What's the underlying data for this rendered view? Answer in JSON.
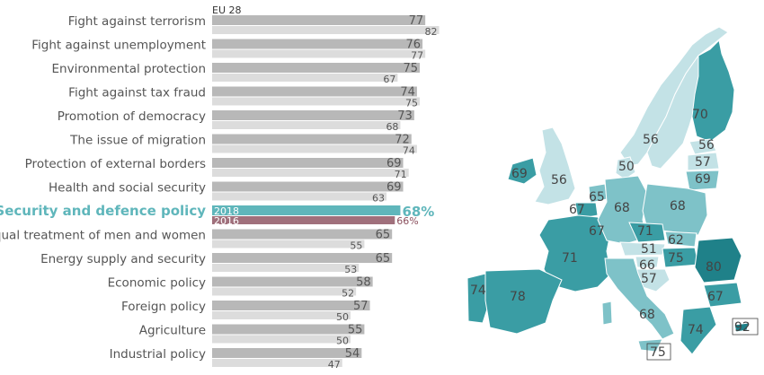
{
  "chart_data": {
    "type": "bar",
    "legend_label": "EU 28",
    "unit": "%",
    "series": [
      {
        "name": "2018"
      },
      {
        "name": "2016"
      }
    ],
    "colors": {
      "bar_2018": "#b8b8b8",
      "bar_2016": "#dcdcdc",
      "highlight_2018": "#5fb6bb",
      "highlight_2016": "#a0707c"
    },
    "rows": [
      {
        "label": "Fight against terrorism",
        "v2018": 77,
        "v2016": 82
      },
      {
        "label": "Fight against unemployment",
        "v2018": 76,
        "v2016": 77
      },
      {
        "label": "Environmental protection",
        "v2018": 75,
        "v2016": 67
      },
      {
        "label": "Fight against tax fraud",
        "v2018": 74,
        "v2016": 75
      },
      {
        "label": "Promotion of democracy",
        "v2018": 73,
        "v2016": 68
      },
      {
        "label": "The issue of migration",
        "v2018": 72,
        "v2016": 74
      },
      {
        "label": "Protection of external borders",
        "v2018": 69,
        "v2016": 71
      },
      {
        "label": "Health and social security",
        "v2018": 69,
        "v2016": 63
      },
      {
        "label": "Security and defence policy",
        "v2018": 68,
        "v2016": 66,
        "highlight": true,
        "v2018_text": "68%",
        "v2016_text": "66%",
        "year1": "2018",
        "year2": "2016"
      },
      {
        "label": "Equal treatment of men and women",
        "v2018": 65,
        "v2016": 55
      },
      {
        "label": "Energy supply and security",
        "v2018": 65,
        "v2016": 53
      },
      {
        "label": "Economic policy",
        "v2018": 58,
        "v2016": 52
      },
      {
        "label": "Foreign policy",
        "v2018": 57,
        "v2016": 50
      },
      {
        "label": "Agriculture",
        "v2018": 55,
        "v2016": 50
      },
      {
        "label": "Industrial policy",
        "v2018": 54,
        "v2016": 47
      }
    ]
  },
  "map": {
    "values": [
      {
        "country": "Finland",
        "value": "70"
      },
      {
        "country": "Sweden",
        "value": "56"
      },
      {
        "country": "Estonia",
        "value": "56"
      },
      {
        "country": "Latvia",
        "value": "57"
      },
      {
        "country": "Lithuania",
        "value": "69"
      },
      {
        "country": "Denmark",
        "value": "50"
      },
      {
        "country": "Ireland",
        "value": "69"
      },
      {
        "country": "United Kingdom",
        "value": "56"
      },
      {
        "country": "Netherlands",
        "value": "65"
      },
      {
        "country": "Belgium",
        "value": "67"
      },
      {
        "country": "Luxembourg",
        "value": "67"
      },
      {
        "country": "Germany",
        "value": "68"
      },
      {
        "country": "Poland",
        "value": "68"
      },
      {
        "country": "Czech Republic",
        "value": "71"
      },
      {
        "country": "Slovakia",
        "value": "62"
      },
      {
        "country": "Austria",
        "value": "51"
      },
      {
        "country": "Hungary",
        "value": "75"
      },
      {
        "country": "Slovenia",
        "value": "66"
      },
      {
        "country": "Croatia",
        "value": "57"
      },
      {
        "country": "France",
        "value": "71"
      },
      {
        "country": "Romania",
        "value": "80"
      },
      {
        "country": "Bulgaria",
        "value": "67"
      },
      {
        "country": "Portugal",
        "value": "74"
      },
      {
        "country": "Spain",
        "value": "78"
      },
      {
        "country": "Italy",
        "value": "68"
      },
      {
        "country": "Greece",
        "value": "74"
      },
      {
        "country": "Cyprus",
        "value": "92"
      },
      {
        "country": "Malta",
        "value": "75"
      }
    ],
    "colors": {
      "water": "#ffffff",
      "scale_low": "#c3e2e6",
      "scale_mid": "#7ec2c8",
      "scale_high": "#3a9da4",
      "scale_top": "#1f8189"
    }
  }
}
